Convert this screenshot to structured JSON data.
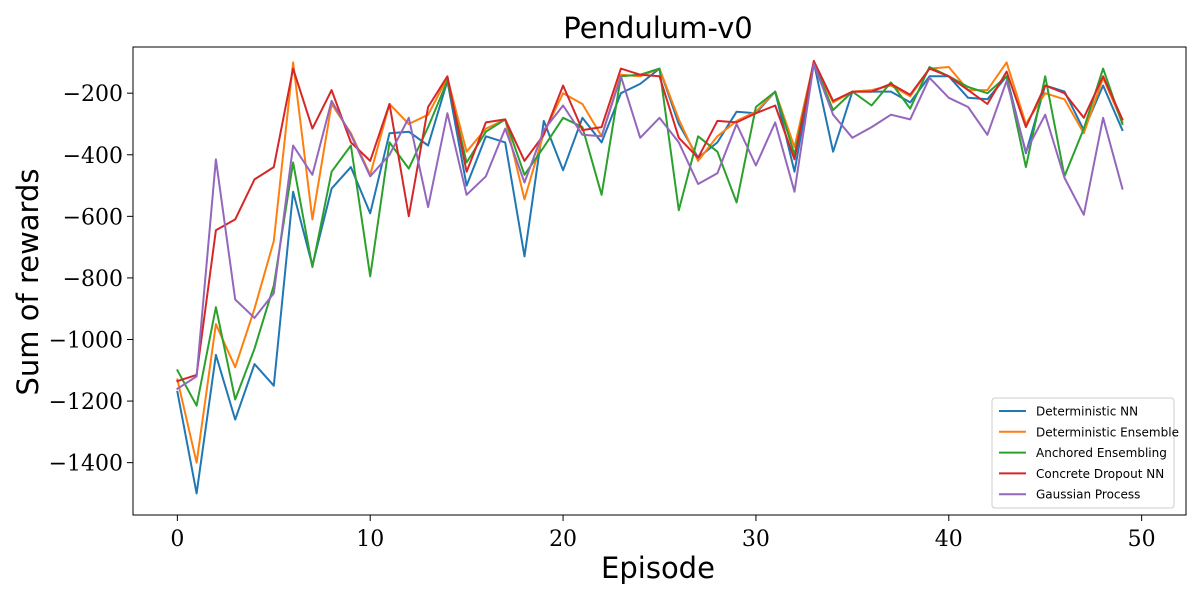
{
  "chart_data": {
    "type": "line",
    "title": "Pendulum-v0",
    "xlabel": "Episode",
    "ylabel": "Sum of rewards",
    "xlim": [
      -2.3,
      52.3
    ],
    "ylim": [
      -1570,
      -50
    ],
    "xticks": [
      0,
      10,
      20,
      30,
      40,
      50
    ],
    "yticks": [
      -1400,
      -1200,
      -1000,
      -800,
      -600,
      -400,
      -200
    ],
    "ytick_labels": [
      "−1400",
      "−1200",
      "−1000",
      "−800",
      "−600",
      "−400",
      "−200"
    ],
    "grid": false,
    "legend_position": "lower-right",
    "x": [
      0,
      1,
      2,
      3,
      4,
      5,
      6,
      7,
      8,
      9,
      10,
      11,
      12,
      13,
      14,
      15,
      16,
      17,
      18,
      19,
      20,
      21,
      22,
      23,
      24,
      25,
      26,
      27,
      28,
      29,
      30,
      31,
      32,
      33,
      34,
      35,
      36,
      37,
      38,
      39,
      40,
      41,
      42,
      43,
      44,
      45,
      46,
      47,
      48,
      49
    ],
    "series": [
      {
        "name": "Deterministic NN",
        "color": "#1f77b4",
        "values": [
          -1170,
          -1500,
          -1050,
          -1260,
          -1080,
          -1150,
          -520,
          -760,
          -510,
          -440,
          -590,
          -330,
          -325,
          -370,
          -160,
          -500,
          -340,
          -360,
          -730,
          -290,
          -450,
          -280,
          -360,
          -200,
          -170,
          -120,
          -300,
          -410,
          -360,
          -260,
          -265,
          -195,
          -455,
          -100,
          -390,
          -195,
          -195,
          -195,
          -230,
          -145,
          -145,
          -215,
          -220,
          -145,
          -395,
          -175,
          -195,
          -320,
          -175,
          -320
        ]
      },
      {
        "name": "Deterministic Ensemble",
        "color": "#ff7f0e",
        "values": [
          -1130,
          -1400,
          -950,
          -1090,
          -900,
          -680,
          -100,
          -610,
          -235,
          -330,
          -465,
          -235,
          -300,
          -270,
          -150,
          -390,
          -315,
          -285,
          -545,
          -330,
          -200,
          -235,
          -340,
          -140,
          -145,
          -120,
          -285,
          -420,
          -340,
          -290,
          -260,
          -195,
          -375,
          -100,
          -230,
          -195,
          -190,
          -175,
          -210,
          -120,
          -115,
          -190,
          -190,
          -100,
          -300,
          -200,
          -220,
          -330,
          -150,
          -295
        ]
      },
      {
        "name": "Anchored Ensembling",
        "color": "#2ca02c",
        "values": [
          -1100,
          -1215,
          -895,
          -1195,
          -1030,
          -825,
          -425,
          -765,
          -455,
          -370,
          -795,
          -360,
          -445,
          -310,
          -160,
          -425,
          -325,
          -285,
          -465,
          -375,
          -280,
          -310,
          -530,
          -145,
          -140,
          -120,
          -580,
          -340,
          -390,
          -555,
          -245,
          -195,
          -400,
          -100,
          -255,
          -195,
          -240,
          -165,
          -250,
          -115,
          -145,
          -180,
          -200,
          -145,
          -440,
          -145,
          -470,
          -315,
          -120,
          -300
        ]
      },
      {
        "name": "Concrete Dropout NN",
        "color": "#d62728",
        "values": [
          -1135,
          -1115,
          -645,
          -610,
          -480,
          -440,
          -120,
          -315,
          -190,
          -360,
          -420,
          -235,
          -600,
          -245,
          -145,
          -455,
          -295,
          -285,
          -420,
          -335,
          -175,
          -320,
          -310,
          -120,
          -140,
          -145,
          -345,
          -410,
          -290,
          -295,
          -265,
          -240,
          -415,
          -95,
          -225,
          -195,
          -195,
          -170,
          -205,
          -120,
          -145,
          -190,
          -235,
          -130,
          -310,
          -175,
          -200,
          -280,
          -145,
          -285
        ]
      },
      {
        "name": "Gaussian Process",
        "color": "#9467bd",
        "values": [
          -1160,
          -1120,
          -415,
          -870,
          -930,
          -850,
          -370,
          -465,
          -225,
          -335,
          -470,
          -400,
          -280,
          -570,
          -265,
          -530,
          -470,
          -315,
          -490,
          -320,
          -240,
          -335,
          -340,
          -145,
          -345,
          -280,
          -360,
          -495,
          -460,
          -300,
          -435,
          -295,
          -520,
          -105,
          -270,
          -345,
          -310,
          -270,
          -285,
          -150,
          -215,
          -245,
          -335,
          -160,
          -390,
          -270,
          -475,
          -595,
          -280,
          -510
        ]
      }
    ]
  }
}
